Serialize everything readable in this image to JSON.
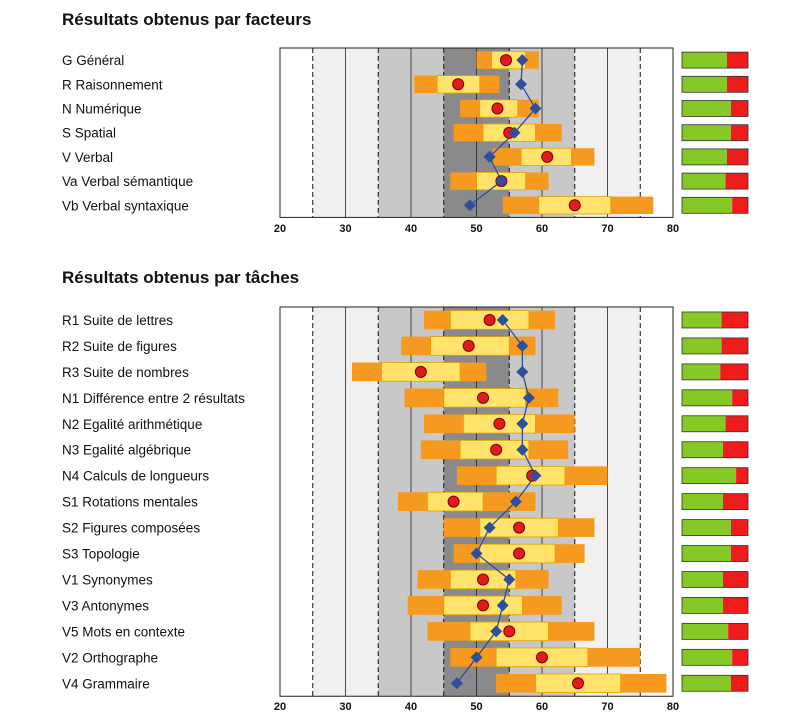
{
  "colors": {
    "zone_outer": "#ffffff",
    "zone_light": "#f0f0f0",
    "zone_mid": "#c8c8c8",
    "zone_dark": "#a0a0a0",
    "zone_center": "#8a8a8c",
    "range_outer": "#f59a1e",
    "range_inner": "#ffe36a",
    "range_border": "#e0a000",
    "circle_fill": "#e31b1b",
    "diamond_fill": "#2e4f9c",
    "line_color": "#2e4f9c",
    "bar_green": "#86c927",
    "bar_red": "#ee1c1c"
  },
  "chart_data": [
    {
      "type": "range-dot",
      "title": "Résultats obtenus par facteurs",
      "xlim": [
        20,
        80
      ],
      "xticks": [
        20,
        30,
        40,
        50,
        60,
        70,
        80
      ],
      "dashed_lines": [
        25,
        35,
        45,
        55,
        65,
        75
      ],
      "rows": [
        {
          "label": "G Général",
          "outer": [
            50,
            59.5
          ],
          "inner": [
            52.3,
            57.5
          ],
          "circle": 54.5,
          "diamond": 57,
          "green_pct": 68
        },
        {
          "label": "R Raisonnement",
          "outer": [
            40.5,
            53.5
          ],
          "inner": [
            44,
            50.5
          ],
          "circle": 47.2,
          "diamond": 56.8,
          "green_pct": 68
        },
        {
          "label": "N Numérique",
          "outer": [
            47.5,
            59.5
          ],
          "inner": [
            50.5,
            56.3
          ],
          "circle": 53.2,
          "diamond": 59,
          "green_pct": 74
        },
        {
          "label": "S Spatial",
          "outer": [
            46.5,
            63
          ],
          "inner": [
            51,
            59
          ],
          "circle": 55,
          "diamond": 55.8,
          "green_pct": 74
        },
        {
          "label": "V Verbal",
          "outer": [
            52.5,
            68
          ],
          "inner": [
            56.8,
            64.5
          ],
          "circle": 60.8,
          "diamond": 52,
          "green_pct": 68
        },
        {
          "label": "Va Verbal sémantique",
          "outer": [
            46,
            61
          ],
          "inner": [
            50,
            57.5
          ],
          "circle": 53.8,
          "diamond": 53.8,
          "green_pct": 66
        },
        {
          "label": "Vb Verbal syntaxique",
          "outer": [
            54,
            77
          ],
          "inner": [
            59.5,
            70.5
          ],
          "circle": 65,
          "diamond": 49,
          "green_pct": 76
        }
      ]
    },
    {
      "type": "range-dot",
      "title": "Résultats obtenus par tâches",
      "xlim": [
        20,
        80
      ],
      "xticks": [
        20,
        30,
        40,
        50,
        60,
        70,
        80
      ],
      "dashed_lines": [
        25,
        35,
        45,
        55,
        65,
        75
      ],
      "rows": [
        {
          "label": "R1 Suite de lettres",
          "outer": [
            42,
            62
          ],
          "inner": [
            46,
            58
          ],
          "circle": 52,
          "diamond": 54,
          "green_pct": 60
        },
        {
          "label": "R2 Suite de figures",
          "outer": [
            38.5,
            59
          ],
          "inner": [
            43,
            55
          ],
          "circle": 48.8,
          "diamond": 57,
          "green_pct": 60
        },
        {
          "label": "R3 Suite de nombres",
          "outer": [
            31,
            51.5
          ],
          "inner": [
            35.5,
            47.5
          ],
          "circle": 41.5,
          "diamond": 57,
          "green_pct": 58
        },
        {
          "label": "N1 Différence entre 2 résultats",
          "outer": [
            39,
            62.5
          ],
          "inner": [
            45,
            57.5
          ],
          "circle": 51,
          "diamond": 58,
          "green_pct": 76
        },
        {
          "label": "N2 Egalité arithmétique",
          "outer": [
            42,
            65
          ],
          "inner": [
            48,
            59
          ],
          "circle": 53.5,
          "diamond": 57,
          "green_pct": 66
        },
        {
          "label": "N3 Egalité algébrique",
          "outer": [
            41.5,
            64
          ],
          "inner": [
            47.5,
            58
          ],
          "circle": 53,
          "diamond": 57,
          "green_pct": 62
        },
        {
          "label": "N4 Calculs de longueurs",
          "outer": [
            47,
            70
          ],
          "inner": [
            53,
            63.5
          ],
          "circle": 58.5,
          "diamond": 59,
          "green_pct": 82
        },
        {
          "label": "S1 Rotations mentales",
          "outer": [
            38,
            59
          ],
          "inner": [
            42.5,
            51
          ],
          "circle": 46.5,
          "diamond": 56,
          "green_pct": 62
        },
        {
          "label": "S2 Figures composées",
          "outer": [
            45,
            68
          ],
          "inner": [
            50.5,
            62.5
          ],
          "circle": 56.5,
          "diamond": 52,
          "green_pct": 74
        },
        {
          "label": "S3 Topologie",
          "outer": [
            46.5,
            66.5
          ],
          "inner": [
            50.5,
            62
          ],
          "circle": 56.5,
          "diamond": 50,
          "green_pct": 74
        },
        {
          "label": "V1 Synonymes",
          "outer": [
            41,
            61
          ],
          "inner": [
            46,
            56
          ],
          "circle": 51,
          "diamond": 55,
          "green_pct": 62
        },
        {
          "label": "V3 Antonymes",
          "outer": [
            39.5,
            63
          ],
          "inner": [
            45,
            57
          ],
          "circle": 51,
          "diamond": 54,
          "green_pct": 62
        },
        {
          "label": "V5 Mots en contexte",
          "outer": [
            42.5,
            68
          ],
          "inner": [
            49,
            61
          ],
          "circle": 55,
          "diamond": 53,
          "green_pct": 70
        },
        {
          "label": "V2 Orthographe",
          "outer": [
            46,
            75
          ],
          "inner": [
            53,
            67
          ],
          "circle": 60,
          "diamond": 50,
          "green_pct": 76
        },
        {
          "label": "V4 Grammaire",
          "outer": [
            53,
            79
          ],
          "inner": [
            59,
            72
          ],
          "circle": 65.5,
          "diamond": 47,
          "green_pct": 74
        }
      ]
    }
  ]
}
